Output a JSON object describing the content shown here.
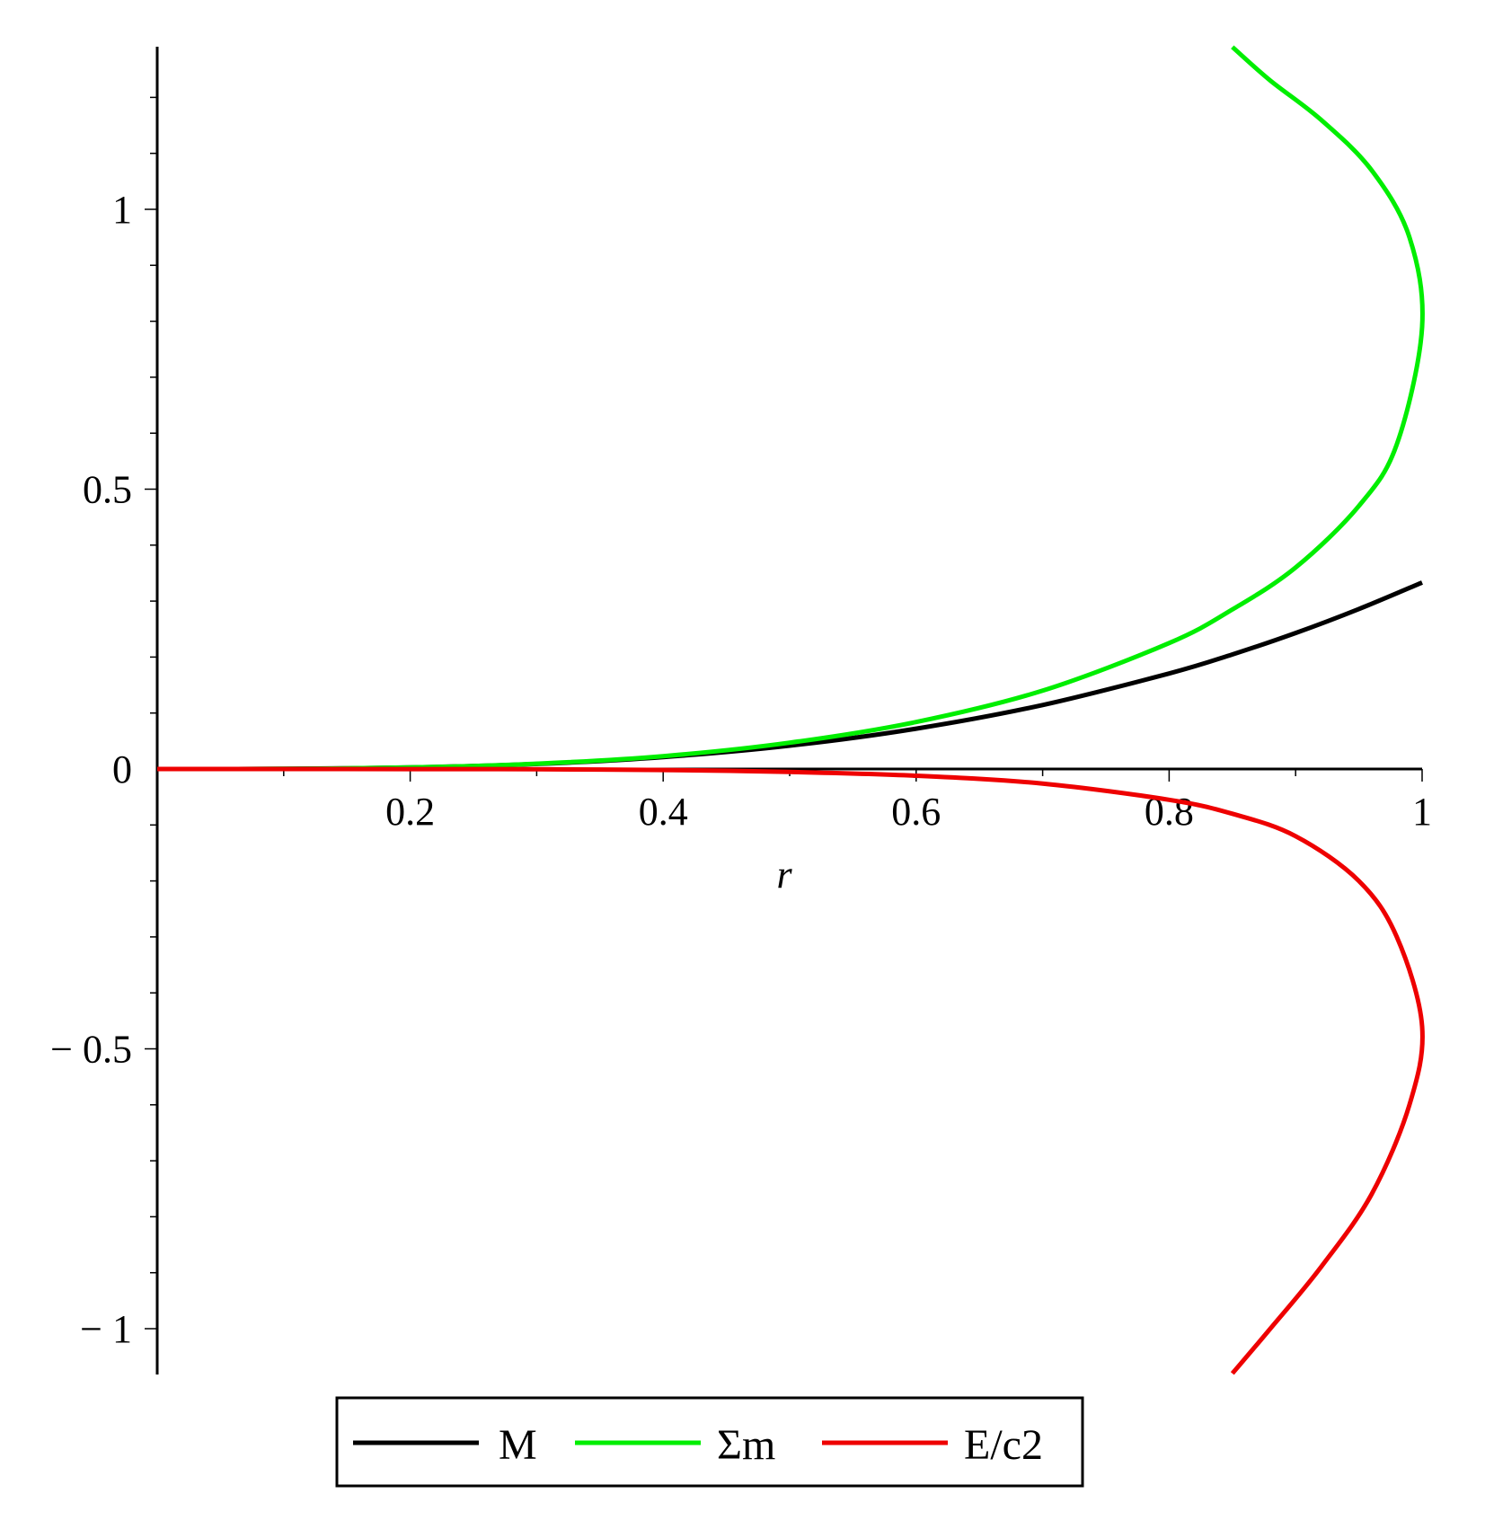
{
  "chart_data": {
    "type": "line",
    "xlabel": "r",
    "ylabel": "",
    "xlim": [
      0,
      1
    ],
    "ylim": [
      -1.08,
      1.29
    ],
    "x_ticks": [
      {
        "value": 0.2,
        "label": "0.2"
      },
      {
        "value": 0.4,
        "label": "0.4"
      },
      {
        "value": 0.6,
        "label": "0.6"
      },
      {
        "value": 0.8,
        "label": "0.8"
      },
      {
        "value": 1.0,
        "label": "1"
      }
    ],
    "y_ticks": [
      {
        "value": 1.0,
        "label": "1"
      },
      {
        "value": 0.5,
        "label": "0.5"
      },
      {
        "value": 0.0,
        "label": "0"
      },
      {
        "value": -0.5,
        "label": "− 0.5"
      },
      {
        "value": -1.0,
        "label": "− 1"
      }
    ],
    "grid": false,
    "legend": "bottom",
    "series": [
      {
        "name": "M",
        "color": "#000000",
        "points": [
          [
            0,
            0
          ],
          [
            0.1,
            0.0003
          ],
          [
            0.2,
            0.0027
          ],
          [
            0.3,
            0.009
          ],
          [
            0.4,
            0.0213
          ],
          [
            0.5,
            0.0417
          ],
          [
            0.6,
            0.072
          ],
          [
            0.7,
            0.1143
          ],
          [
            0.8,
            0.1707
          ],
          [
            0.85,
            0.2047
          ],
          [
            0.9,
            0.243
          ],
          [
            0.95,
            0.2858
          ],
          [
            1.0,
            0.3333
          ]
        ]
      },
      {
        "name": "Σm",
        "color": "#00ee00",
        "points": [
          [
            0,
            0
          ],
          [
            0.1,
            0.0003
          ],
          [
            0.2,
            0.0027
          ],
          [
            0.3,
            0.0095
          ],
          [
            0.4,
            0.023
          ],
          [
            0.5,
            0.047
          ],
          [
            0.6,
            0.084
          ],
          [
            0.7,
            0.14
          ],
          [
            0.8,
            0.225
          ],
          [
            0.85,
            0.285
          ],
          [
            0.9,
            0.36
          ],
          [
            0.95,
            0.47
          ],
          [
            0.98,
            0.58
          ],
          [
            1.0,
            0.79
          ],
          [
            0.99,
            0.95
          ],
          [
            0.96,
            1.07
          ],
          [
            0.92,
            1.16
          ],
          [
            0.88,
            1.23
          ],
          [
            0.85,
            1.29
          ]
        ]
      },
      {
        "name": "E/c2",
        "color": "#ee0000",
        "points": [
          [
            0,
            0
          ],
          [
            0.2,
            -0.0001
          ],
          [
            0.3,
            -0.0005
          ],
          [
            0.4,
            -0.0017
          ],
          [
            0.5,
            -0.0053
          ],
          [
            0.6,
            -0.012
          ],
          [
            0.7,
            -0.026
          ],
          [
            0.8,
            -0.055
          ],
          [
            0.85,
            -0.08
          ],
          [
            0.9,
            -0.12
          ],
          [
            0.95,
            -0.2
          ],
          [
            0.98,
            -0.3
          ],
          [
            1.0,
            -0.46
          ],
          [
            0.99,
            -0.6
          ],
          [
            0.96,
            -0.76
          ],
          [
            0.92,
            -0.89
          ],
          [
            0.88,
            -1.0
          ],
          [
            0.85,
            -1.08
          ]
        ]
      }
    ]
  }
}
